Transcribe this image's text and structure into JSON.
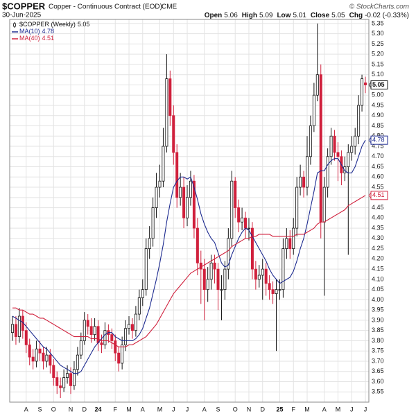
{
  "chart_data": {
    "type": "candlestick",
    "title": "$COPPER",
    "subtitle": "Copper - Continuous Contract (EOD)",
    "exchange": "CME",
    "date": "30-Jun-2025",
    "source": "© StockCharts.com",
    "stat_labels": [
      "Open",
      "High",
      "Low",
      "Close",
      "Chg"
    ],
    "change": "-0.02 (-0.33%)",
    "grid": true,
    "ylim": [
      3.5,
      5.37
    ],
    "yticks": [
      3.55,
      {
        "value": 3.6,
        "label": "3.60"
      },
      3.65,
      {
        "value": 3.7,
        "label": "3.70"
      },
      3.75,
      {
        "value": 3.8,
        "label": "3.80"
      },
      3.85,
      {
        "value": 3.9,
        "label": "3.90"
      },
      3.95,
      {
        "value": 4,
        "label": "4.00"
      },
      4.05,
      {
        "value": 4.1,
        "label": "4.10"
      },
      4.15,
      {
        "value": 4.2,
        "label": "4.20"
      },
      4.25,
      {
        "value": 4.3,
        "label": "4.30"
      },
      4.35,
      {
        "value": 4.4,
        "label": "4.40"
      },
      4.45,
      {
        "value": 4.5,
        "label": "4.50"
      },
      4.55,
      {
        "value": 4.6,
        "label": "4.60"
      },
      4.65,
      {
        "value": 4.7,
        "label": "4.70"
      },
      4.75,
      {
        "value": 4.8,
        "label": "4.80"
      },
      4.85,
      {
        "value": 4.9,
        "label": "4.90"
      },
      4.95,
      {
        "value": 5,
        "label": "5.00"
      },
      5.05,
      {
        "value": 5.1,
        "label": "5.10"
      },
      5.15,
      {
        "value": 5.2,
        "label": "5.20"
      },
      5.25,
      {
        "value": 5.3,
        "label": "5.30"
      },
      5.35
    ],
    "categories": [
      null,
      null,
      null,
      null,
      "A",
      null,
      null,
      null,
      "S",
      null,
      null,
      null,
      "O",
      null,
      null,
      null,
      null,
      "N",
      null,
      null,
      null,
      "D",
      null,
      null,
      null,
      "24",
      null,
      null,
      null,
      null,
      "F",
      null,
      null,
      null,
      "M",
      null,
      null,
      null,
      "A",
      null,
      null,
      null,
      null,
      "M",
      null,
      null,
      null,
      "J",
      null,
      null,
      null,
      "J",
      null,
      null,
      null,
      null,
      "A",
      null,
      null,
      null,
      "S",
      null,
      null,
      null,
      null,
      "O",
      null,
      null,
      null,
      "N",
      null,
      null,
      null,
      "D",
      null,
      null,
      null,
      null,
      "25",
      null,
      null,
      null,
      "F",
      null,
      null,
      null,
      "M",
      null,
      null,
      null,
      null,
      "A",
      null,
      null,
      null,
      "M",
      null,
      null,
      null,
      "J",
      null,
      null,
      null,
      "J"
    ],
    "series": [
      {
        "name": "$COPPER (Weekly)",
        "type": "candlestick",
        "color": "#d0203c",
        "open": [
          3.84,
          3.88,
          3.82,
          3.92,
          3.85,
          3.78,
          3.72,
          3.7,
          3.76,
          3.74,
          3.7,
          3.73,
          3.68,
          3.62,
          3.58,
          3.57,
          3.62,
          3.64,
          3.58,
          3.66,
          3.73,
          3.8,
          3.9,
          3.87,
          3.83,
          3.87,
          3.79,
          3.78,
          3.85,
          3.83,
          3.8,
          3.74,
          3.69,
          3.78,
          3.86,
          3.88,
          3.85,
          3.93,
          4.01,
          4.05,
          4.25,
          4.3,
          4.45,
          4.55,
          4.58,
          4.75,
          5.08,
          4.9,
          4.72,
          4.5,
          4.55,
          4.4,
          4.5,
          4.58,
          4.35,
          4.18,
          4.15,
          4.05,
          4.1,
          4.18,
          4.15,
          4.05,
          4.05,
          4.15,
          4.3,
          4.58,
          4.45,
          4.38,
          4.4,
          4.35,
          4.35,
          4.15,
          4.1,
          4.12,
          4.15,
          4.08,
          4.05,
          4.03,
          4.05,
          4.05,
          4.25,
          4.3,
          4.25,
          4.35,
          4.55,
          4.6,
          4.55,
          4.7,
          4.85,
          5.0,
          5.1,
          4.38,
          4.55,
          4.7,
          4.8,
          4.72,
          4.7,
          4.62,
          4.65,
          4.72,
          4.75,
          4.8,
          4.95,
          5.06
        ],
        "high": [
          3.92,
          3.92,
          3.96,
          3.95,
          3.89,
          3.81,
          3.76,
          3.8,
          3.8,
          3.77,
          3.77,
          3.76,
          3.71,
          3.65,
          3.62,
          3.66,
          3.68,
          3.67,
          3.7,
          3.77,
          3.84,
          3.94,
          3.93,
          3.91,
          3.91,
          3.9,
          3.83,
          3.89,
          3.88,
          3.86,
          3.83,
          3.77,
          3.82,
          3.9,
          3.92,
          3.91,
          3.97,
          4.05,
          4.1,
          4.3,
          4.36,
          4.5,
          4.62,
          4.66,
          4.84,
          5.2,
          5.12,
          4.95,
          4.76,
          4.62,
          4.6,
          4.56,
          4.63,
          4.61,
          4.4,
          4.24,
          4.2,
          4.16,
          4.22,
          4.22,
          4.18,
          4.12,
          4.19,
          4.35,
          4.63,
          4.6,
          4.49,
          4.45,
          4.43,
          4.4,
          4.38,
          4.19,
          4.17,
          4.2,
          4.18,
          4.12,
          4.09,
          4.1,
          4.1,
          4.3,
          4.35,
          4.34,
          4.4,
          4.6,
          4.66,
          4.63,
          4.8,
          4.9,
          5.06,
          5.35,
          5.15,
          4.6,
          4.74,
          4.84,
          4.83,
          4.77,
          4.73,
          4.7,
          4.76,
          4.8,
          4.84,
          5.0,
          5.1,
          5.09
        ],
        "low": [
          3.8,
          3.78,
          3.79,
          3.81,
          3.74,
          3.68,
          3.66,
          3.67,
          3.7,
          3.66,
          3.67,
          3.64,
          3.58,
          3.54,
          3.52,
          3.55,
          3.59,
          3.54,
          3.56,
          3.63,
          3.71,
          3.78,
          3.83,
          3.79,
          3.8,
          3.75,
          3.74,
          3.76,
          3.79,
          3.76,
          3.7,
          3.65,
          3.66,
          3.75,
          3.83,
          3.81,
          3.82,
          3.9,
          3.97,
          4.02,
          4.2,
          4.26,
          4.4,
          4.5,
          4.55,
          4.72,
          4.85,
          4.66,
          4.45,
          4.46,
          4.35,
          4.36,
          4.46,
          4.3,
          4.12,
          3.98,
          3.9,
          3.99,
          4.05,
          4.08,
          3.95,
          3.9,
          4.0,
          4.1,
          4.26,
          4.4,
          4.33,
          4.34,
          4.3,
          4.29,
          4.1,
          4.05,
          4.06,
          4.0,
          4.02,
          4.0,
          3.98,
          3.75,
          4.0,
          4.01,
          4.2,
          4.2,
          4.22,
          4.31,
          4.51,
          4.5,
          4.51,
          4.66,
          4.82,
          4.97,
          4.3,
          4.02,
          4.5,
          4.66,
          4.68,
          4.58,
          4.56,
          4.58,
          4.22,
          4.68,
          4.71,
          4.76,
          4.92,
          5.01
        ],
        "close": [
          3.88,
          3.82,
          3.92,
          3.85,
          3.78,
          3.72,
          3.7,
          3.76,
          3.74,
          3.7,
          3.73,
          3.68,
          3.62,
          3.58,
          3.57,
          3.62,
          3.64,
          3.58,
          3.66,
          3.73,
          3.8,
          3.9,
          3.87,
          3.83,
          3.87,
          3.79,
          3.78,
          3.85,
          3.83,
          3.8,
          3.74,
          3.69,
          3.78,
          3.86,
          3.88,
          3.85,
          3.93,
          4.01,
          4.05,
          4.25,
          4.3,
          4.45,
          4.55,
          4.58,
          4.75,
          5.08,
          4.9,
          4.72,
          4.5,
          4.55,
          4.4,
          4.5,
          4.58,
          4.35,
          4.18,
          4.15,
          4.05,
          4.1,
          4.18,
          4.15,
          4.05,
          4.05,
          4.15,
          4.3,
          4.58,
          4.45,
          4.38,
          4.4,
          4.35,
          4.35,
          4.15,
          4.1,
          4.12,
          4.15,
          4.08,
          4.05,
          4.03,
          4.05,
          4.05,
          4.25,
          4.3,
          4.25,
          4.35,
          4.55,
          4.6,
          4.55,
          4.7,
          4.85,
          5.0,
          5.1,
          4.38,
          4.55,
          4.7,
          4.8,
          4.72,
          4.7,
          4.62,
          4.65,
          4.72,
          4.75,
          4.8,
          4.95,
          5.08,
          5.05
        ]
      },
      {
        "name": "MA(10)",
        "type": "line",
        "color": "#1c2a8f",
        "values": [
          3.92,
          3.91,
          3.9,
          3.89,
          3.87,
          3.85,
          3.83,
          3.81,
          3.79,
          3.77,
          3.76,
          3.74,
          3.72,
          3.7,
          3.68,
          3.67,
          3.66,
          3.65,
          3.64,
          3.64,
          3.65,
          3.68,
          3.71,
          3.74,
          3.77,
          3.79,
          3.81,
          3.83,
          3.84,
          3.84,
          3.82,
          3.81,
          3.8,
          3.8,
          3.8,
          3.8,
          3.81,
          3.83,
          3.86,
          3.91,
          3.96,
          4.03,
          4.1,
          4.18,
          4.27,
          4.38,
          4.47,
          4.55,
          4.58,
          4.6,
          4.6,
          4.59,
          4.6,
          4.55,
          4.49,
          4.42,
          4.37,
          4.33,
          4.3,
          4.28,
          4.23,
          4.18,
          4.16,
          4.17,
          4.22,
          4.26,
          4.3,
          4.33,
          4.35,
          4.34,
          4.31,
          4.28,
          4.25,
          4.22,
          4.19,
          4.15,
          4.12,
          4.1,
          4.08,
          4.09,
          4.1,
          4.11,
          4.14,
          4.19,
          4.25,
          4.3,
          4.37,
          4.45,
          4.53,
          4.62,
          4.63,
          4.63,
          4.66,
          4.68,
          4.69,
          4.69,
          4.66,
          4.63,
          4.62,
          4.62,
          4.65,
          4.7,
          4.75,
          4.78
        ]
      },
      {
        "name": "MA(40)",
        "type": "line",
        "color": "#d0203c",
        "values": [
          3.96,
          3.96,
          3.95,
          3.95,
          3.94,
          3.93,
          3.93,
          3.92,
          3.91,
          3.91,
          3.9,
          3.89,
          3.88,
          3.87,
          3.86,
          3.85,
          3.84,
          3.83,
          3.82,
          3.82,
          3.82,
          3.82,
          3.82,
          3.81,
          3.81,
          3.81,
          3.8,
          3.8,
          3.8,
          3.79,
          3.78,
          3.77,
          3.77,
          3.77,
          3.78,
          3.78,
          3.79,
          3.8,
          3.81,
          3.82,
          3.84,
          3.86,
          3.88,
          3.91,
          3.94,
          3.97,
          4.0,
          4.03,
          4.05,
          4.07,
          4.09,
          4.11,
          4.13,
          4.14,
          4.15,
          4.16,
          4.17,
          4.18,
          4.19,
          4.2,
          4.21,
          4.22,
          4.23,
          4.24,
          4.26,
          4.27,
          4.28,
          4.29,
          4.3,
          4.3,
          4.31,
          4.31,
          4.32,
          4.32,
          4.32,
          4.32,
          4.31,
          4.31,
          4.31,
          4.31,
          4.31,
          4.31,
          4.31,
          4.32,
          4.32,
          4.32,
          4.33,
          4.34,
          4.35,
          4.37,
          4.38,
          4.38,
          4.39,
          4.4,
          4.41,
          4.42,
          4.43,
          4.44,
          4.46,
          4.47,
          4.48,
          4.49,
          4.5,
          4.51
        ]
      }
    ]
  }
}
